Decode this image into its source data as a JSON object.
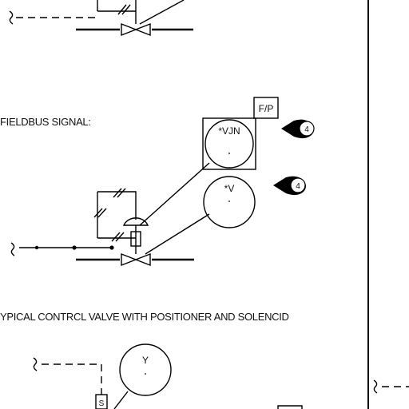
{
  "labels": {
    "fieldbus_signal": "FIELDBUS SIGNAL:",
    "typical_valve_caption": "YPICAL CONTRCL VALVE WITH POSITIONER AND SOLENCID"
  },
  "instruments": {
    "fp_box": "F/P",
    "vjn_tag": "*VJN",
    "v_tag": "*V",
    "y_tag": "Y",
    "s_box": "S"
  },
  "notes": {
    "note_1": "4",
    "note_2": "4"
  }
}
